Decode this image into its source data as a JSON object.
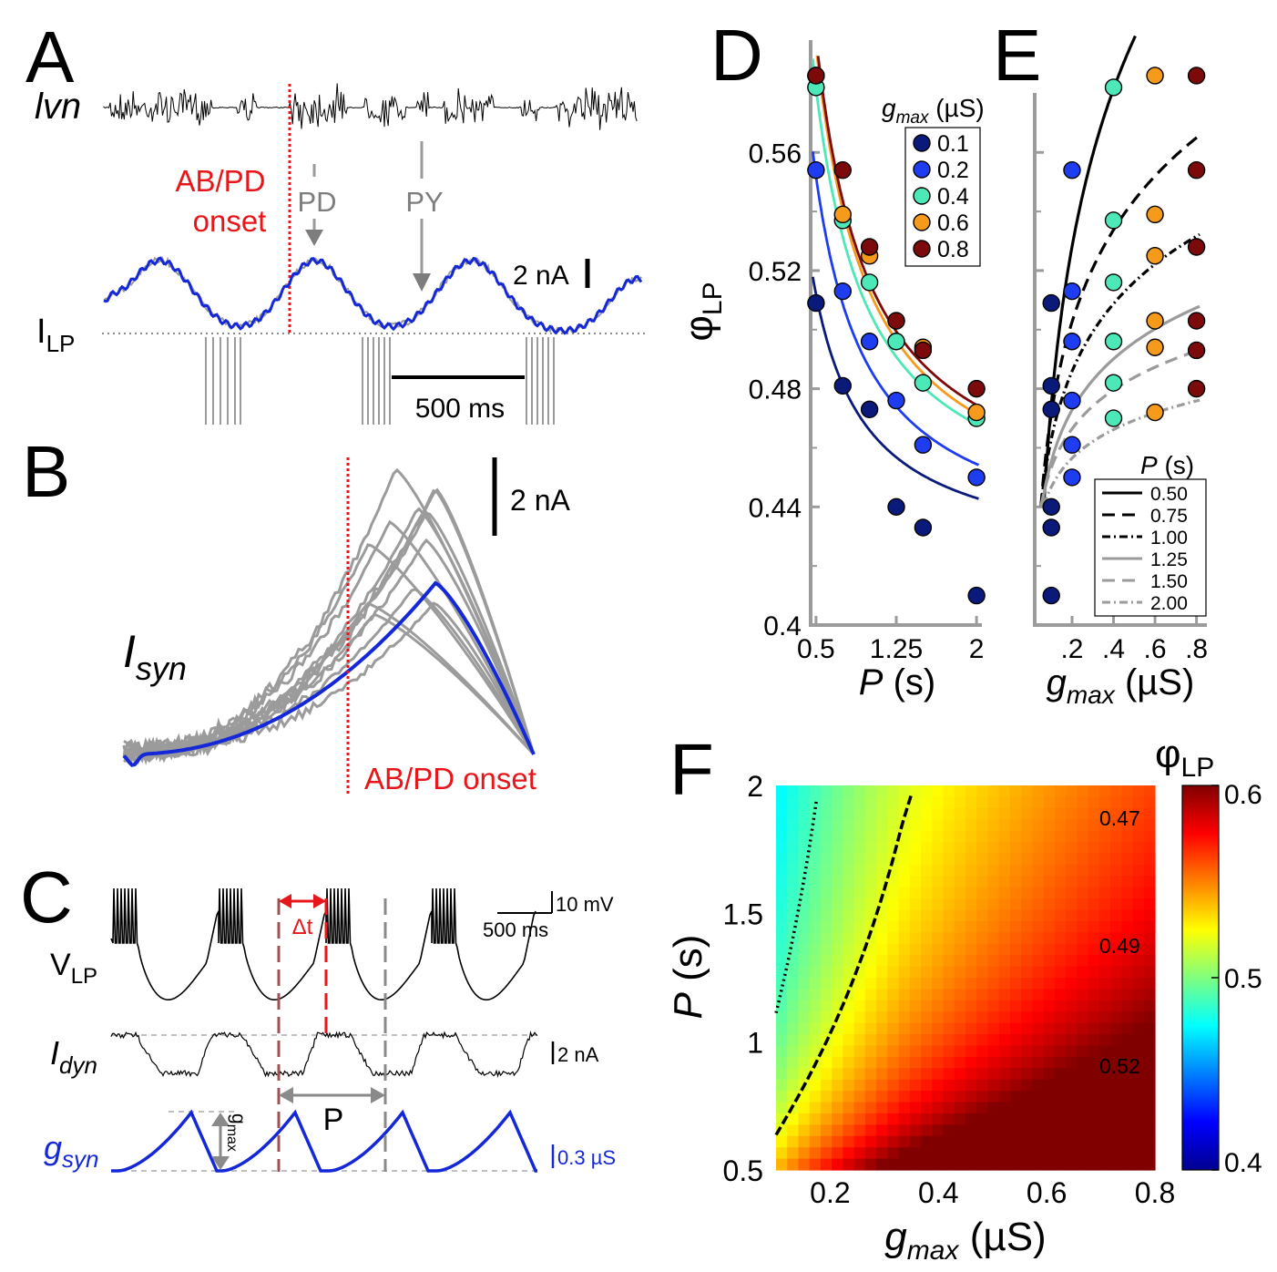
{
  "colors": {
    "red": "#e8151a",
    "blue": "#1428d8",
    "gray": "#9b9b9b",
    "darkgray": "#7d7d7d",
    "black": "#000000",
    "series": [
      "#0a1a7a",
      "#1e3cf0",
      "#4de8b8",
      "#f59a1a",
      "#7d0a0a"
    ]
  },
  "panel_a": {
    "letter": "A",
    "lvn_label": "lvn",
    "abpd_label_1": "AB/PD",
    "abpd_label_2": "onset",
    "pd_label": "PD",
    "py_label": "PY",
    "scale_current": "2 nA",
    "scale_time": "500 ms",
    "ilp_label_main": "I",
    "ilp_label_sub": "LP"
  },
  "panel_b": {
    "letter": "B",
    "isyn_main": "I",
    "isyn_sub": "syn",
    "scale_current": "2 nA",
    "abpd_label": "AB/PD onset"
  },
  "panel_c": {
    "letter": "C",
    "vlp_main": "V",
    "vlp_sub": "LP",
    "idyn_main": "I",
    "idyn_sub": "dyn",
    "gsyn_main": "g",
    "gsyn_sub": "syn",
    "scale_mv": "10 mV",
    "scale_ms": "500 ms",
    "scale_na": "2 nA",
    "scale_us": "0.3 µS",
    "delta_t": "Δt",
    "period_label": "P",
    "gmax_main": "g",
    "gmax_sub": "max"
  },
  "chart_data": [
    {
      "id": "D",
      "type": "scatter",
      "title": "D",
      "ylabel_main": "φ",
      "ylabel_sub": "LP",
      "xlabel_italic": "P",
      "xlabel_rest": " (s)",
      "xlim": [
        0.45,
        2.05
      ],
      "ylim": [
        0.4,
        0.59
      ],
      "xticks": [
        0.5,
        1.25,
        2
      ],
      "xtick_labels": [
        "0.5",
        "1.25",
        "2"
      ],
      "yticks": [
        0.4,
        0.44,
        0.48,
        0.52,
        0.56
      ],
      "ytick_labels": [
        "0.4",
        "0.44",
        "0.48",
        "0.52",
        "0.56"
      ],
      "legend_title_main": "g",
      "legend_title_sub": "max",
      "legend_title_rest": " (µS)",
      "legend_position": "top-right",
      "series": [
        {
          "name": "0.1",
          "x": [
            0.5,
            0.75,
            1.0,
            1.25,
            1.5,
            2.0
          ],
          "y": [
            0.509,
            0.481,
            0.473,
            0.44,
            0.433,
            0.41
          ],
          "fit": {
            "a": 0.42,
            "b": 0.046
          }
        },
        {
          "name": "0.2",
          "x": [
            0.5,
            0.75,
            1.0,
            1.25,
            1.5,
            2.0
          ],
          "y": [
            0.554,
            0.513,
            0.496,
            0.476,
            0.461,
            0.45
          ],
          "fit": {
            "a": 0.422,
            "b": 0.065
          }
        },
        {
          "name": "0.4",
          "x": [
            0.5,
            0.75,
            1.0,
            1.25,
            1.5,
            2.0
          ],
          "y": [
            0.582,
            0.537,
            0.516,
            0.496,
            0.482,
            0.47
          ],
          "fit": {
            "a": 0.43,
            "b": 0.076
          }
        },
        {
          "name": "0.6",
          "x": [
            0.5,
            0.75,
            1.0,
            1.25,
            1.5,
            2.0
          ],
          "y": [
            0.586,
            0.539,
            0.525,
            0.503,
            0.494,
            0.472
          ],
          "fit": {
            "a": 0.43,
            "b": 0.083
          }
        },
        {
          "name": "0.8",
          "x": [
            0.5,
            0.75,
            1.0,
            1.25,
            1.5,
            2.0
          ],
          "y": [
            0.586,
            0.554,
            0.528,
            0.503,
            0.493,
            0.48
          ],
          "fit": {
            "a": 0.433,
            "b": 0.083
          }
        }
      ]
    },
    {
      "id": "E",
      "type": "scatter",
      "title": "E",
      "xlabel_italic": "g",
      "xlabel_sub": "max",
      "xlabel_rest": " (µS)",
      "xlim": [
        0.02,
        0.85
      ],
      "ylim": [
        0.4,
        0.59
      ],
      "xticks": [
        0.2,
        0.4,
        0.6,
        0.8
      ],
      "xtick_labels": [
        ".2",
        ".4",
        ".6",
        ".8"
      ],
      "legend_title_italic": "P",
      "legend_title_rest": " (s)",
      "legend_position": "bottom-right",
      "legend_entries": [
        "0.50",
        "0.75",
        "1.00",
        "1.25",
        "1.50",
        "2.00"
      ],
      "fit_lines": [
        {
          "P": 0.5,
          "a": 0.652,
          "b": 0.077
        },
        {
          "P": 0.75,
          "a": 0.575,
          "b": 0.045
        },
        {
          "P": 1.0,
          "a": 0.539,
          "b": 0.033
        },
        {
          "P": 1.25,
          "a": 0.513,
          "b": 0.025
        },
        {
          "P": 1.5,
          "a": 0.497,
          "b": 0.019
        },
        {
          "P": 2.0,
          "a": 0.479,
          "b": 0.014
        }
      ]
    },
    {
      "id": "F",
      "type": "heatmap",
      "title": "F",
      "xlabel_italic": "g",
      "xlabel_sub": "max",
      "xlabel_rest": " (µS)",
      "ylabel_italic": "P",
      "ylabel_rest": " (s)",
      "xlim": [
        0.1,
        0.8
      ],
      "ylim": [
        0.5,
        2.0
      ],
      "xticks": [
        0.2,
        0.4,
        0.6,
        0.8
      ],
      "xtick_labels": [
        "0.2",
        "0.4",
        "0.6",
        "0.8"
      ],
      "yticks": [
        0.5,
        1,
        1.5,
        2
      ],
      "ytick_labels": [
        "0.5",
        "1",
        "1.5",
        "2"
      ],
      "colorbar_label_main": "φ",
      "colorbar_label_sub": "LP",
      "colorbar_range": [
        0.4,
        0.6
      ],
      "colorbar_ticks": [
        0.4,
        0.5,
        0.6
      ],
      "colorbar_tick_labels": [
        "0.4",
        "0.5",
        "0.6"
      ],
      "contours": [
        {
          "level": "0.47",
          "style": "solid"
        },
        {
          "level": "0.49",
          "style": "dotted"
        },
        {
          "level": "0.52",
          "style": "dashed"
        }
      ]
    }
  ]
}
